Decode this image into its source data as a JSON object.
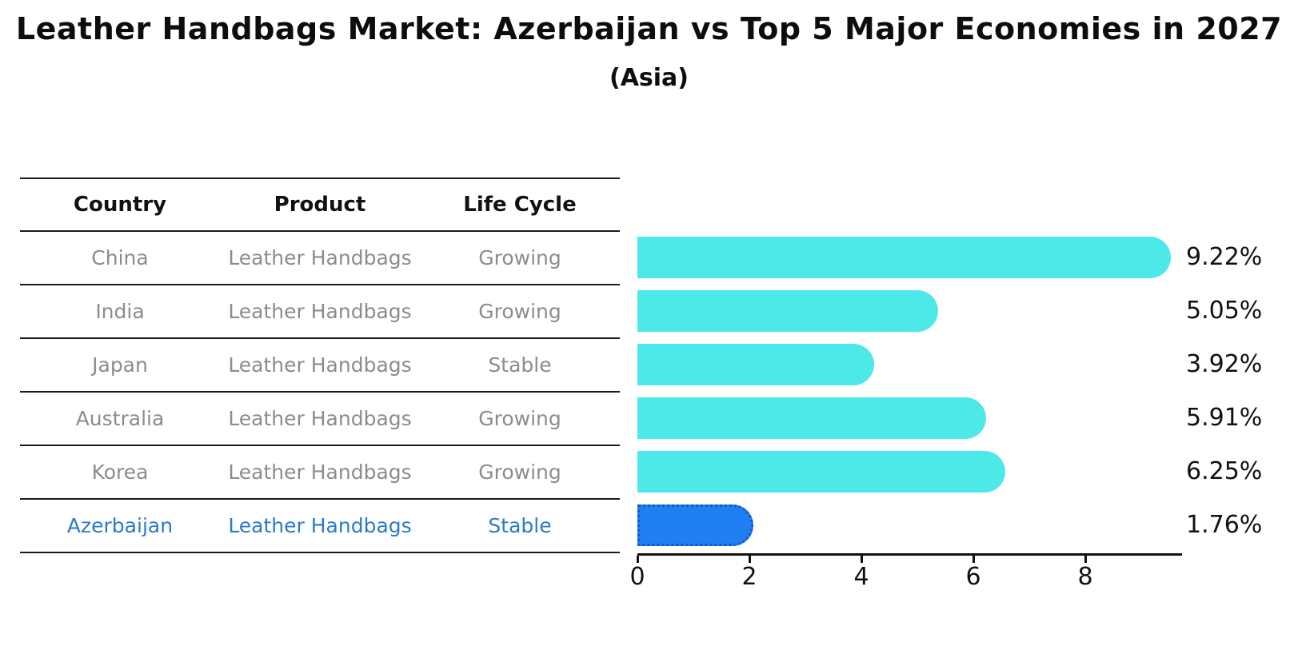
{
  "title": "Leather Handbags Market: Azerbaijan vs Top 5 Major Economies in 2027",
  "subtitle": "(Asia)",
  "colors": {
    "bar": "#4de8e8",
    "highlight-bar": "#1f7ff2",
    "highlight-border": "#1356cc",
    "highlight-text": "#2b7bc9",
    "cell-text": "#8c8c8c",
    "heading-text": "#111111"
  },
  "table": {
    "headers": [
      "Country",
      "Product",
      "Life Cycle"
    ],
    "rows": [
      {
        "country": "China",
        "product": "Leather Handbags",
        "life_cycle": "Growing",
        "highlight": false
      },
      {
        "country": "India",
        "product": "Leather Handbags",
        "life_cycle": "Growing",
        "highlight": false
      },
      {
        "country": "Japan",
        "product": "Leather Handbags",
        "life_cycle": "Stable",
        "highlight": false
      },
      {
        "country": "Australia",
        "product": "Leather Handbags",
        "life_cycle": "Growing",
        "highlight": false
      },
      {
        "country": "Korea",
        "product": "Leather Handbags",
        "life_cycle": "Growing",
        "highlight": false
      },
      {
        "country": "Azerbaijan",
        "product": "Leather Handbags",
        "life_cycle": "Stable",
        "highlight": true
      }
    ]
  },
  "chart_data": {
    "type": "bar",
    "orientation": "horizontal",
    "title": "Leather Handbags Market: Azerbaijan vs Top 5 Major Economies in 2027 (Asia)",
    "categories": [
      "China",
      "India",
      "Japan",
      "Australia",
      "Korea",
      "Azerbaijan"
    ],
    "values": [
      9.22,
      5.05,
      3.92,
      5.91,
      6.25,
      1.76
    ],
    "value_labels": [
      "9.22%",
      "5.05%",
      "3.92%",
      "5.91%",
      "6.25%",
      "1.76%"
    ],
    "xticks": [
      0,
      2,
      4,
      6,
      8
    ],
    "xlim": [
      0,
      9.7
    ],
    "grid": false,
    "legend": false,
    "highlight_index": 5,
    "highlight_category": "Azerbaijan"
  }
}
